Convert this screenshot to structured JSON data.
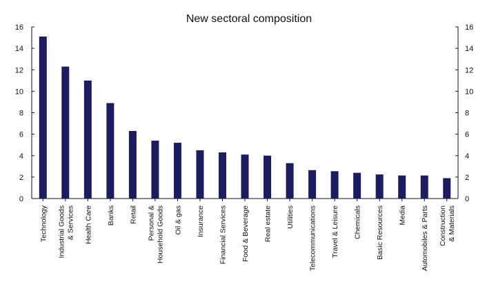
{
  "chart_data": {
    "type": "bar",
    "title": "New sectoral composition",
    "xlabel": "",
    "ylabel": "",
    "ylim": [
      0,
      16
    ],
    "yticks": [
      0,
      2,
      4,
      6,
      8,
      10,
      12,
      14,
      16
    ],
    "secondary_y_axis": true,
    "grid": false,
    "bar_color": "#1c1c60",
    "categories": [
      [
        "Technology"
      ],
      [
        "Industrial Goods",
        "& Services"
      ],
      [
        "Health Care"
      ],
      [
        "Banks"
      ],
      [
        "Retail"
      ],
      [
        "Personal &",
        "Household Goods"
      ],
      [
        "Oil & gas"
      ],
      [
        "Insurance"
      ],
      [
        "Financial Services"
      ],
      [
        "Food & Beverage"
      ],
      [
        "Real estate"
      ],
      [
        "Utilities"
      ],
      [
        "Telecommunications"
      ],
      [
        "Travel & Leisure"
      ],
      [
        "Chemicals"
      ],
      [
        "Basic Resources"
      ],
      [
        "Media"
      ],
      [
        "Automobiles & Parts"
      ],
      [
        "Construction",
        "& Materials"
      ]
    ],
    "values": [
      15.1,
      12.3,
      11.0,
      8.9,
      6.3,
      5.4,
      5.2,
      4.5,
      4.3,
      4.1,
      4.0,
      3.3,
      2.65,
      2.55,
      2.4,
      2.25,
      2.15,
      2.15,
      1.9
    ]
  }
}
